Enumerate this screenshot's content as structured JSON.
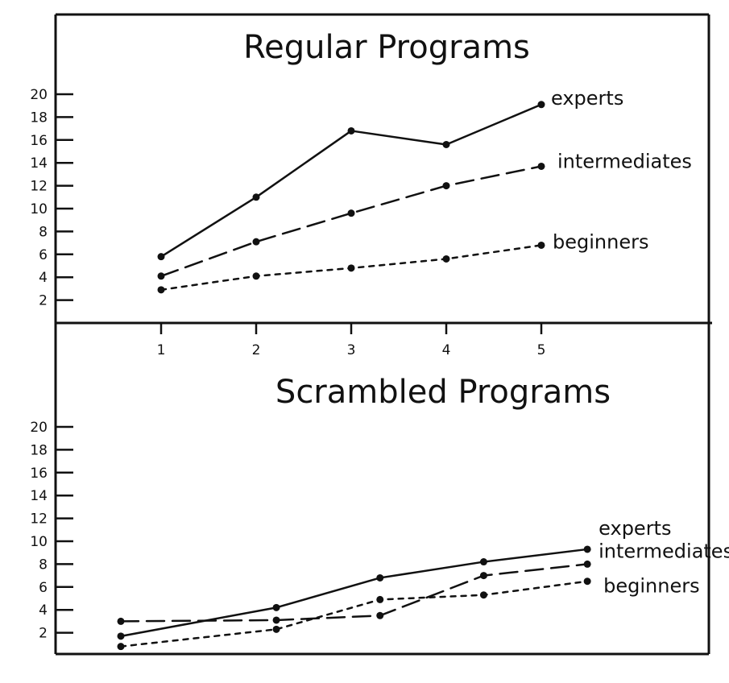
{
  "chart_data": [
    {
      "type": "line",
      "title": "Regular Programs",
      "x": [
        1,
        2,
        3,
        4,
        5
      ],
      "xticks": [
        "1",
        "2",
        "3",
        "4",
        "5"
      ],
      "yticks": [
        "2",
        "4",
        "6",
        "8",
        "10",
        "12",
        "14",
        "16",
        "18",
        "20"
      ],
      "ylim": [
        0,
        20
      ],
      "grid": false,
      "series": [
        {
          "name": "experts",
          "style": "solid",
          "values": [
            5.8,
            11,
            16.8,
            15.6,
            19.1
          ]
        },
        {
          "name": "intermediates",
          "style": "dashed",
          "values": [
            4.1,
            7.1,
            9.6,
            12,
            13.7
          ]
        },
        {
          "name": "beginners",
          "style": "dotted",
          "values": [
            2.9,
            4.1,
            4.8,
            5.6,
            6.8
          ]
        }
      ]
    },
    {
      "type": "line",
      "title": "Scrambled Programs",
      "x": [
        0.5,
        2,
        3,
        4,
        5
      ],
      "yticks": [
        "2",
        "4",
        "6",
        "8",
        "10",
        "12",
        "14",
        "16",
        "18",
        "20"
      ],
      "ylim": [
        0,
        20
      ],
      "grid": false,
      "series": [
        {
          "name": "experts",
          "style": "solid",
          "values": [
            1.7,
            4.2,
            6.8,
            8.2,
            9.3
          ]
        },
        {
          "name": "intermediates",
          "style": "dashed",
          "values": [
            3,
            3.1,
            3.5,
            7,
            8
          ]
        },
        {
          "name": "beginners",
          "style": "dotted",
          "values": [
            0.8,
            2.3,
            4.9,
            5.3,
            6.5
          ]
        }
      ]
    }
  ]
}
